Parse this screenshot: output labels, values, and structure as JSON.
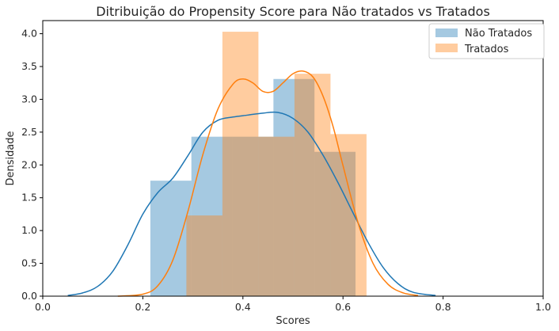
{
  "chart_data": {
    "type": "histogram",
    "title": "Ditribuição do Propensity Score para Não tratados vs Tratados",
    "xlabel": "Scores",
    "ylabel": "Densidade",
    "xlim": [
      0.0,
      1.0
    ],
    "ylim": [
      0.0,
      4.2
    ],
    "xticks": [
      0.0,
      0.2,
      0.4,
      0.6,
      0.8,
      1.0
    ],
    "yticks": [
      0.0,
      0.5,
      1.0,
      1.5,
      2.0,
      2.5,
      3.0,
      3.5,
      4.0
    ],
    "grid": false,
    "legend_position": "top-right",
    "series": [
      {
        "name": "Não Tratados",
        "color": "#1f77b4",
        "bar_color": "#a6c8e3",
        "bins": [
          {
            "x0": 0.215,
            "x1": 0.297,
            "density": 1.76
          },
          {
            "x0": 0.297,
            "x1": 0.379,
            "density": 2.43
          },
          {
            "x0": 0.379,
            "x1": 0.461,
            "density": 2.43
          },
          {
            "x0": 0.461,
            "x1": 0.543,
            "density": 3.31
          },
          {
            "x0": 0.543,
            "x1": 0.625,
            "density": 2.2
          }
        ],
        "kde": [
          [
            0.05,
            0.01
          ],
          [
            0.08,
            0.05
          ],
          [
            0.11,
            0.15
          ],
          [
            0.14,
            0.38
          ],
          [
            0.17,
            0.78
          ],
          [
            0.2,
            1.25
          ],
          [
            0.23,
            1.58
          ],
          [
            0.26,
            1.8
          ],
          [
            0.29,
            2.14
          ],
          [
            0.32,
            2.5
          ],
          [
            0.35,
            2.68
          ],
          [
            0.38,
            2.73
          ],
          [
            0.41,
            2.76
          ],
          [
            0.44,
            2.79
          ],
          [
            0.47,
            2.8
          ],
          [
            0.5,
            2.71
          ],
          [
            0.53,
            2.5
          ],
          [
            0.56,
            2.15
          ],
          [
            0.59,
            1.73
          ],
          [
            0.62,
            1.27
          ],
          [
            0.65,
            0.82
          ],
          [
            0.68,
            0.44
          ],
          [
            0.71,
            0.19
          ],
          [
            0.74,
            0.06
          ],
          [
            0.785,
            0.01
          ]
        ]
      },
      {
        "name": "Tratados",
        "color": "#ff7f0e",
        "bar_color": "#ffc79a",
        "bins": [
          {
            "x0": 0.287,
            "x1": 0.359,
            "density": 1.23
          },
          {
            "x0": 0.359,
            "x1": 0.431,
            "density": 4.03
          },
          {
            "x0": 0.431,
            "x1": 0.503,
            "density": 2.43
          },
          {
            "x0": 0.503,
            "x1": 0.575,
            "density": 3.39
          },
          {
            "x0": 0.575,
            "x1": 0.647,
            "density": 2.47
          }
        ],
        "kde": [
          [
            0.15,
            0.0
          ],
          [
            0.2,
            0.03
          ],
          [
            0.23,
            0.16
          ],
          [
            0.26,
            0.55
          ],
          [
            0.29,
            1.29
          ],
          [
            0.32,
            2.16
          ],
          [
            0.35,
            2.85
          ],
          [
            0.38,
            3.23
          ],
          [
            0.4,
            3.31
          ],
          [
            0.42,
            3.25
          ],
          [
            0.44,
            3.12
          ],
          [
            0.46,
            3.12
          ],
          [
            0.48,
            3.25
          ],
          [
            0.5,
            3.39
          ],
          [
            0.52,
            3.43
          ],
          [
            0.54,
            3.34
          ],
          [
            0.56,
            3.05
          ],
          [
            0.58,
            2.59
          ],
          [
            0.6,
            1.99
          ],
          [
            0.63,
            1.12
          ],
          [
            0.66,
            0.5
          ],
          [
            0.69,
            0.18
          ],
          [
            0.72,
            0.05
          ],
          [
            0.75,
            0.01
          ]
        ]
      }
    ]
  }
}
